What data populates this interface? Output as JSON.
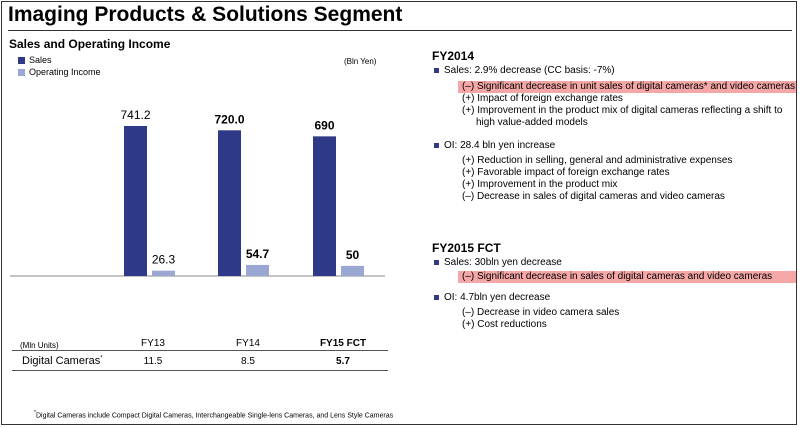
{
  "page": {
    "title": "Imaging Products & Solutions Segment"
  },
  "chart_data": {
    "type": "bar",
    "title": "Sales and Operating Income",
    "unit": "(Bln Yen)",
    "categories": [
      "FY13",
      "FY14",
      "FY15 FCT"
    ],
    "series": [
      {
        "name": "Sales",
        "color": "#2e3a87",
        "values": [
          741.2,
          720.0,
          690
        ],
        "labels": [
          "741.2",
          "720.0",
          "690"
        ]
      },
      {
        "name": "Operating Income",
        "color": "#9aa7d2",
        "values": [
          26.3,
          54.7,
          50
        ],
        "labels": [
          "26.3",
          "54.7",
          "50"
        ]
      }
    ],
    "label_bold": [
      false,
      true,
      true
    ],
    "grid": false,
    "legend_position": "top-left"
  },
  "table": {
    "units": "(Mln Units)",
    "columns": [
      "FY13",
      "FY14",
      "FY15 FCT"
    ],
    "row_label": "Digital Cameras",
    "row_marker": "*",
    "values": [
      "11.5",
      "8.5",
      "5.7"
    ]
  },
  "footnote": {
    "marker": "*",
    "text": "Digital Cameras include Compact Digital Cameras, Interchangeable Single-lens Cameras, and Lens Style Cameras"
  },
  "fy2014": {
    "title": "FY2014",
    "sales": {
      "text": "Sales: 2.9% decrease (CC basis: -7%)",
      "items": [
        "(–) Significant decrease in unit sales of digital cameras* and video cameras",
        "(+) Impact of foreign exchange rates",
        "(+) Improvement in the product mix of digital cameras reflecting a shift to",
        "high value-added models"
      ]
    },
    "oi": {
      "text": "OI: 28.4 bln yen increase",
      "items": [
        "(+) Reduction in selling, general and administrative expenses",
        "(+) Favorable impact of foreign exchange rates",
        "(+) Improvement in the product mix",
        "(–) Decrease in sales of digital cameras and video cameras"
      ]
    }
  },
  "fy2015": {
    "title": "FY2015 FCT",
    "sales": {
      "text": "Sales: 30bln yen decrease",
      "items": [
        "(–) Significant decrease in sales of digital cameras and video cameras"
      ]
    },
    "oi": {
      "text": "OI: 4.7bln yen decrease",
      "items": [
        "(–) Decrease in video camera sales",
        "(+) Cost reductions"
      ]
    }
  },
  "colors": {
    "accent": "#2e3a87",
    "secondary": "#9aa7d2",
    "highlight": "#f4a7a6"
  }
}
